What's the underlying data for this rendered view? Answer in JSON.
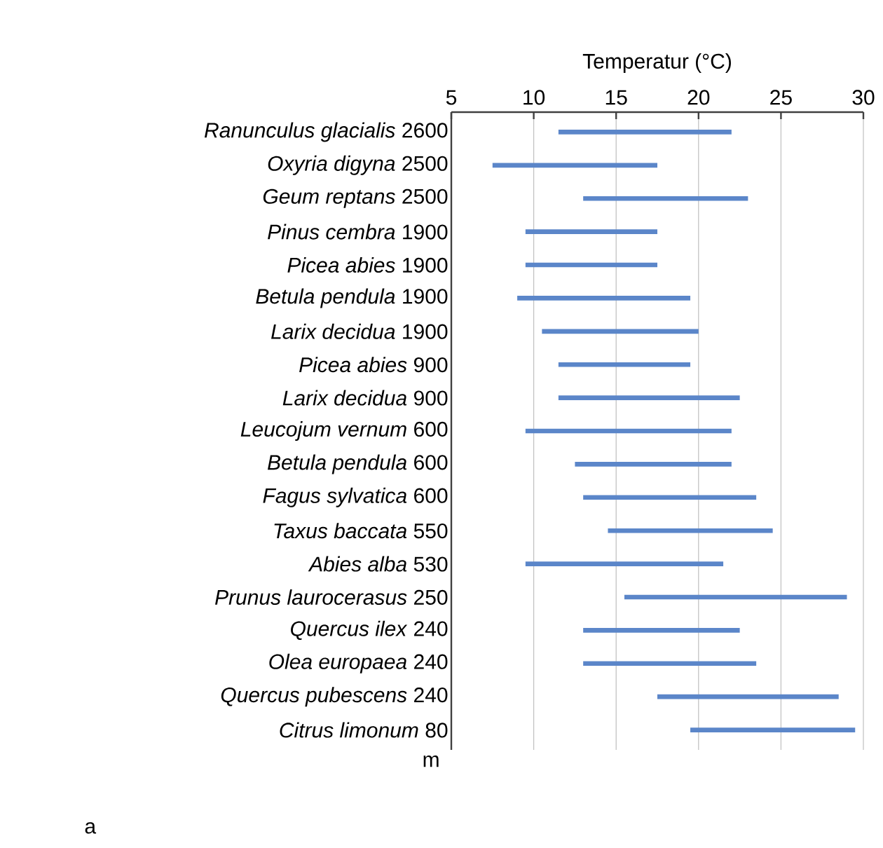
{
  "chart_data": {
    "type": "bar",
    "orientation": "horizontal",
    "xlabel": "Temperatur (°C)",
    "ylabel": "m",
    "categories": [
      "*Ranunculus glacialis* 2600",
      "*Oxyria digyna* 2500",
      "*Geum reptans* 2500",
      "*Pinus cembra* 1900",
      "*Picea abies* 1900",
      "*Betula pendula* 1900",
      "*Larix decidua* 1900",
      "*Picea abies* 900",
      "*Larix decidua* 900",
      "*Leucojum vernum* 600",
      "*Betula pendula* 600",
      "*Fagus sylvatica* 600",
      "*Taxus baccata* 550",
      "*Abies alba* 530",
      "*Prunus laurocerasus* 250",
      "*Quercus ilex* 240",
      "*Olea europaea* 240",
      "*Quercus pubescens* 240",
      "*Citrus limonum* 80"
    ],
    "base": [
      11.5,
      7.5,
      13,
      9.5,
      9.5,
      9,
      10.5,
      11.5,
      11.5,
      9.5,
      12.5,
      13,
      14.5,
      9.5,
      15.5,
      13,
      13,
      17.5,
      19.5
    ],
    "values": [
      10.5,
      10,
      10,
      8,
      8,
      10.5,
      9.5,
      8,
      11,
      12.5,
      9.5,
      10.5,
      10,
      12,
      13.5,
      9.5,
      10.5,
      11,
      10
    ],
    "color": "#5b86c9",
    "xlim": [
      5,
      30
    ],
    "xticks": [
      5,
      10,
      15,
      20,
      25,
      30
    ],
    "grid": "x",
    "annotations": [
      "a"
    ]
  }
}
